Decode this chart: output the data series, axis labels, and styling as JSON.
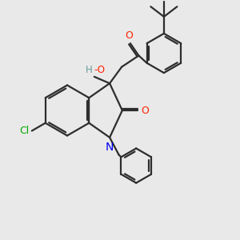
{
  "bg_color": "#e9e9e9",
  "bond_color": "#2d2d2d",
  "N_color": "#0000ee",
  "O_color": "#ff2200",
  "Cl_color": "#00aa00",
  "H_color": "#6a9a9a",
  "figsize": [
    3.0,
    3.0
  ],
  "dpi": 100,
  "xlim": [
    0,
    10
  ],
  "ylim": [
    0,
    10
  ]
}
